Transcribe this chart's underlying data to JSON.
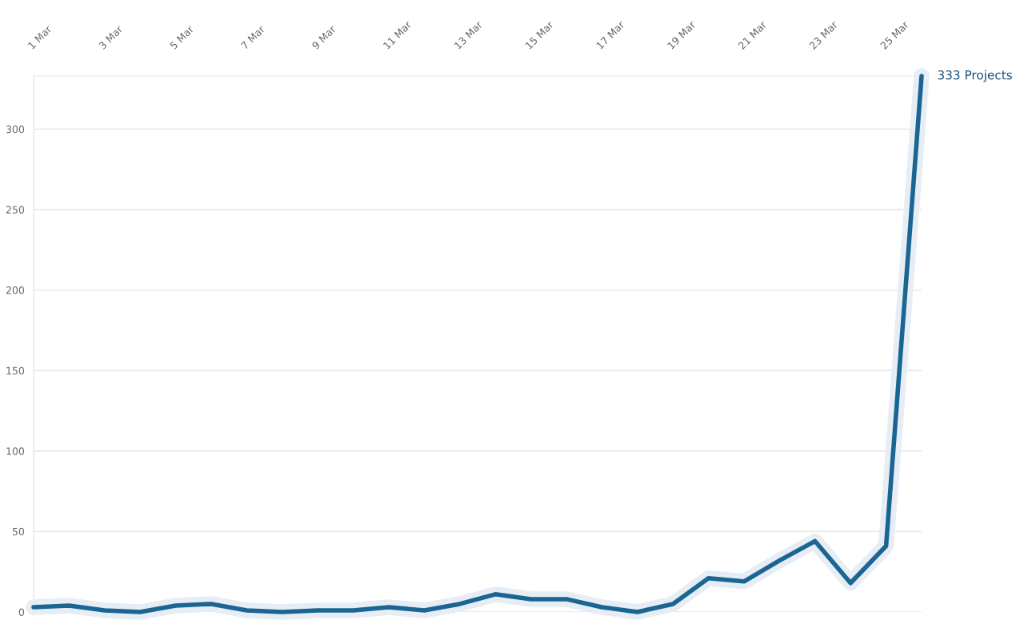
{
  "chart_data": {
    "type": "line",
    "categories": [
      "1 Mar",
      null,
      "3 Mar",
      null,
      "5 Mar",
      null,
      "7 Mar",
      null,
      "9 Mar",
      null,
      "11 Mar",
      null,
      "13 Mar",
      null,
      "15 Mar",
      null,
      "17 Mar",
      null,
      "19 Mar",
      null,
      "21 Mar",
      null,
      "23 Mar",
      null,
      "25 Mar",
      null
    ],
    "series": [
      {
        "color": "#1b6593",
        "values": [
          3,
          4,
          1,
          0,
          4,
          5,
          1,
          0,
          1,
          1,
          3,
          1,
          5,
          11,
          8,
          8,
          3,
          0,
          5,
          21,
          19,
          32,
          44,
          18,
          41,
          333
        ]
      }
    ],
    "ylim": [
      0,
      333
    ],
    "yticks": [
      0,
      50,
      100,
      150,
      200,
      250,
      300
    ],
    "grid": "y",
    "annotations": [
      "333 Projects"
    ]
  }
}
